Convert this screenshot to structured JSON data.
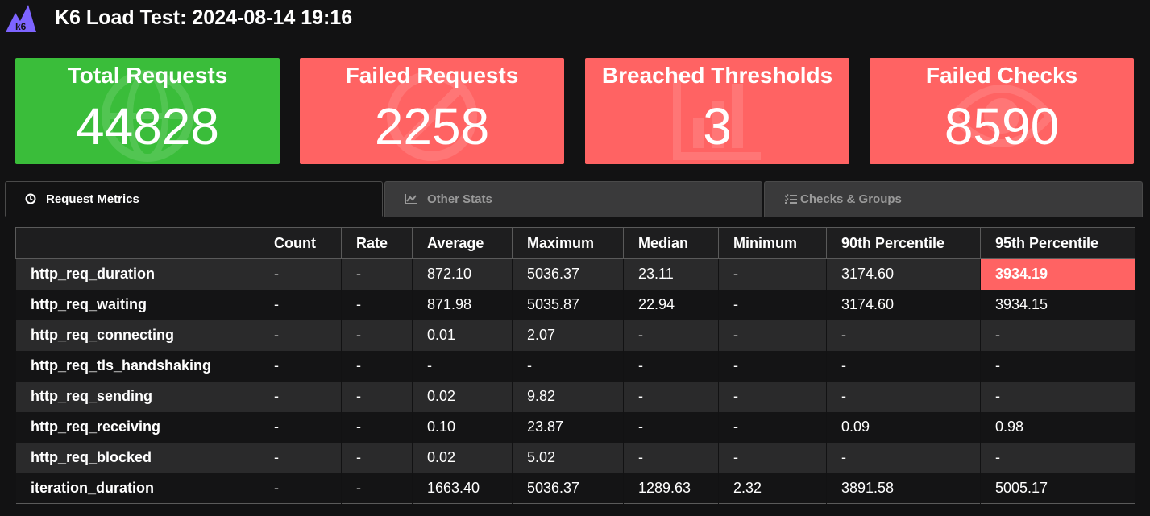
{
  "header": {
    "logo_text": "k6",
    "title": "K6 Load Test: 2024-08-14 19:16"
  },
  "colors": {
    "success": "#3abd3a",
    "failure": "#ff6363",
    "logo": "#7d64ff",
    "background": "#121213"
  },
  "cards": [
    {
      "label": "Total Requests",
      "value": "44828",
      "icon": "globe-icon",
      "status": "success"
    },
    {
      "label": "Failed Requests",
      "value": "2258",
      "icon": "ban-icon",
      "status": "failure"
    },
    {
      "label": "Breached Thresholds",
      "value": "3",
      "icon": "bar-chart-icon",
      "status": "failure"
    },
    {
      "label": "Failed Checks",
      "value": "8590",
      "icon": "eye-icon",
      "status": "failure"
    }
  ],
  "tabs": [
    {
      "label": "Request Metrics",
      "icon": "clock-icon",
      "active": true
    },
    {
      "label": "Other Stats",
      "icon": "line-chart-icon",
      "active": false
    },
    {
      "label": "Checks & Groups",
      "icon": "list-check-icon",
      "active": false
    }
  ],
  "table": {
    "columns": [
      "",
      "Count",
      "Rate",
      "Average",
      "Maximum",
      "Median",
      "Minimum",
      "90th Percentile",
      "95th Percentile"
    ],
    "rows": [
      {
        "cells": [
          "http_req_duration",
          "-",
          "-",
          "872.10",
          "5036.37",
          "23.11",
          "-",
          "3174.60",
          "3934.19"
        ],
        "breached_col": 8
      },
      {
        "cells": [
          "http_req_waiting",
          "-",
          "-",
          "871.98",
          "5035.87",
          "22.94",
          "-",
          "3174.60",
          "3934.15"
        ]
      },
      {
        "cells": [
          "http_req_connecting",
          "-",
          "-",
          "0.01",
          "2.07",
          "-",
          "-",
          "-",
          "-"
        ]
      },
      {
        "cells": [
          "http_req_tls_handshaking",
          "-",
          "-",
          "-",
          "-",
          "-",
          "-",
          "-",
          "-"
        ]
      },
      {
        "cells": [
          "http_req_sending",
          "-",
          "-",
          "0.02",
          "9.82",
          "-",
          "-",
          "-",
          "-"
        ]
      },
      {
        "cells": [
          "http_req_receiving",
          "-",
          "-",
          "0.10",
          "23.87",
          "-",
          "-",
          "0.09",
          "0.98"
        ]
      },
      {
        "cells": [
          "http_req_blocked",
          "-",
          "-",
          "0.02",
          "5.02",
          "-",
          "-",
          "-",
          "-"
        ]
      },
      {
        "cells": [
          "iteration_duration",
          "-",
          "-",
          "1663.40",
          "5036.37",
          "1289.63",
          "2.32",
          "3891.58",
          "5005.17"
        ]
      }
    ]
  }
}
